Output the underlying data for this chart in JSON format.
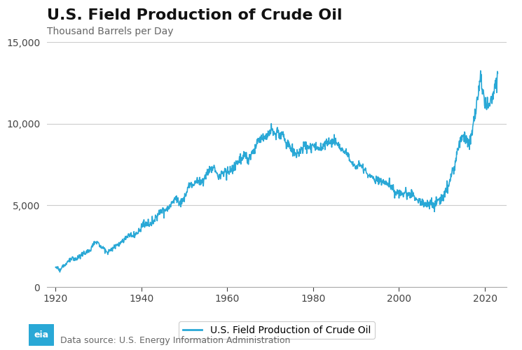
{
  "title": "U.S. Field Production of Crude Oil",
  "ylabel": "Thousand Barrels per Day",
  "legend_label": "U.S. Field Production of Crude Oil",
  "source": "Data source: U.S. Energy Information Administration",
  "line_color": "#29a8d6",
  "line_width": 1.2,
  "ylim": [
    0,
    15000
  ],
  "yticks": [
    0,
    5000,
    10000,
    15000
  ],
  "xticks": [
    1920,
    1940,
    1960,
    1980,
    2000,
    2020
  ],
  "xlim": [
    1918,
    2025
  ],
  "bg_color": "#ffffff",
  "grid_color": "#cccccc",
  "title_fontsize": 16,
  "subtitle_fontsize": 10,
  "tick_fontsize": 10,
  "legend_fontsize": 10,
  "source_fontsize": 9,
  "keypoints": [
    [
      1920,
      1200
    ],
    [
      1921,
      1100
    ],
    [
      1922,
      1300
    ],
    [
      1923,
      1600
    ],
    [
      1924,
      1700
    ],
    [
      1925,
      1750
    ],
    [
      1926,
      1950
    ],
    [
      1927,
      2100
    ],
    [
      1928,
      2200
    ],
    [
      1929,
      2770
    ],
    [
      1930,
      2640
    ],
    [
      1931,
      2400
    ],
    [
      1932,
      2100
    ],
    [
      1933,
      2360
    ],
    [
      1934,
      2470
    ],
    [
      1935,
      2700
    ],
    [
      1936,
      2900
    ],
    [
      1937,
      3200
    ],
    [
      1938,
      3100
    ],
    [
      1939,
      3300
    ],
    [
      1940,
      3700
    ],
    [
      1941,
      3850
    ],
    [
      1942,
      3850
    ],
    [
      1943,
      4100
    ],
    [
      1944,
      4600
    ],
    [
      1945,
      4700
    ],
    [
      1946,
      4750
    ],
    [
      1947,
      5100
    ],
    [
      1948,
      5500
    ],
    [
      1949,
      5050
    ],
    [
      1950,
      5400
    ],
    [
      1951,
      6200
    ],
    [
      1952,
      6300
    ],
    [
      1953,
      6500
    ],
    [
      1954,
      6400
    ],
    [
      1955,
      6800
    ],
    [
      1956,
      7200
    ],
    [
      1957,
      7200
    ],
    [
      1958,
      6700
    ],
    [
      1959,
      7100
    ],
    [
      1960,
      7035
    ],
    [
      1961,
      7200
    ],
    [
      1962,
      7500
    ],
    [
      1963,
      7800
    ],
    [
      1964,
      8000
    ],
    [
      1965,
      7800
    ],
    [
      1966,
      8300
    ],
    [
      1967,
      8810
    ],
    [
      1968,
      9100
    ],
    [
      1969,
      9240
    ],
    [
      1970,
      9637
    ],
    [
      1971,
      9460
    ],
    [
      1972,
      9440
    ],
    [
      1973,
      9200
    ],
    [
      1974,
      8770
    ],
    [
      1975,
      8375
    ],
    [
      1976,
      8130
    ],
    [
      1977,
      8245
    ],
    [
      1978,
      8707
    ],
    [
      1979,
      8552
    ],
    [
      1980,
      8597
    ],
    [
      1981,
      8572
    ],
    [
      1982,
      8649
    ],
    [
      1983,
      8688
    ],
    [
      1984,
      8879
    ],
    [
      1985,
      8971
    ],
    [
      1986,
      8680
    ],
    [
      1987,
      8345
    ],
    [
      1988,
      8140
    ],
    [
      1989,
      7613
    ],
    [
      1990,
      7355
    ],
    [
      1991,
      7417
    ],
    [
      1992,
      7171
    ],
    [
      1993,
      6847
    ],
    [
      1994,
      6660
    ],
    [
      1995,
      6560
    ],
    [
      1996,
      6465
    ],
    [
      1997,
      6452
    ],
    [
      1998,
      6252
    ],
    [
      1999,
      5880
    ],
    [
      2000,
      5822
    ],
    [
      2001,
      5801
    ],
    [
      2002,
      5746
    ],
    [
      2003,
      5681
    ],
    [
      2004,
      5419
    ],
    [
      2005,
      5178
    ],
    [
      2006,
      5102
    ],
    [
      2007,
      5064
    ],
    [
      2008,
      5000
    ],
    [
      2009,
      5355
    ],
    [
      2010,
      5475
    ],
    [
      2011,
      5645
    ],
    [
      2012,
      6497
    ],
    [
      2013,
      7459
    ],
    [
      2014,
      8714
    ],
    [
      2015,
      9422
    ],
    [
      2016,
      8833
    ],
    [
      2017,
      9352
    ],
    [
      2018,
      10988
    ],
    [
      2019,
      12866
    ],
    [
      2020,
      11283
    ],
    [
      2021,
      11185
    ],
    [
      2022,
      11888
    ],
    [
      2023,
      12900
    ]
  ]
}
